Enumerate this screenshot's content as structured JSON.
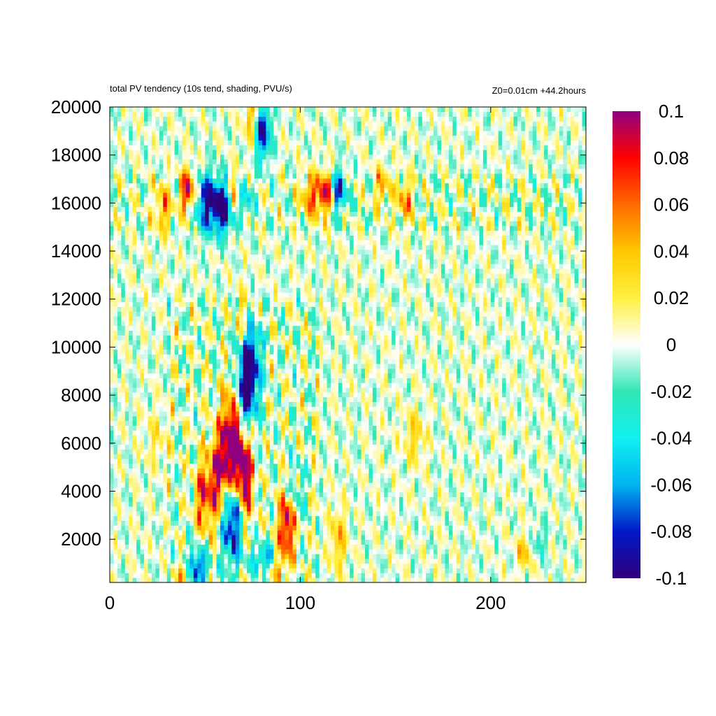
{
  "chart_data": {
    "type": "heatmap",
    "title": "total PV tendency (10s tend, shading, PVU/s)",
    "subtitle": "Z0=0.01cm   +44.2hours",
    "xlim": [
      0,
      250
    ],
    "ylim": [
      200,
      20000
    ],
    "x_ticks": [
      {
        "value": 0,
        "label": "0"
      },
      {
        "value": 100,
        "label": "100"
      },
      {
        "value": 200,
        "label": "200"
      }
    ],
    "y_ticks": [
      {
        "value": 2000,
        "label": "2000"
      },
      {
        "value": 4000,
        "label": "4000"
      },
      {
        "value": 6000,
        "label": "6000"
      },
      {
        "value": 8000,
        "label": "8000"
      },
      {
        "value": 10000,
        "label": "10000"
      },
      {
        "value": 12000,
        "label": "12000"
      },
      {
        "value": 14000,
        "label": "14000"
      },
      {
        "value": 16000,
        "label": "16000"
      },
      {
        "value": 18000,
        "label": "18000"
      },
      {
        "value": 20000,
        "label": "20000"
      }
    ],
    "colorbar": {
      "range": [
        -0.1,
        0.1
      ],
      "ticks": [
        {
          "value": 0.1,
          "label": "0.1"
        },
        {
          "value": 0.08,
          "label": "0.08"
        },
        {
          "value": 0.06,
          "label": "0.06"
        },
        {
          "value": 0.04,
          "label": "0.04"
        },
        {
          "value": 0.02,
          "label": "0.02"
        },
        {
          "value": 0,
          "label": "0"
        },
        {
          "value": -0.02,
          "label": "-0.02"
        },
        {
          "value": -0.04,
          "label": "-0.04"
        },
        {
          "value": -0.06,
          "label": "-0.06"
        },
        {
          "value": -0.08,
          "label": "-0.08"
        },
        {
          "value": -0.1,
          "label": "-0.1"
        }
      ],
      "colormap": [
        {
          "v": -0.1,
          "color": "#30007a"
        },
        {
          "v": -0.08,
          "color": "#0018c8"
        },
        {
          "v": -0.06,
          "color": "#00b4f0"
        },
        {
          "v": -0.04,
          "color": "#10f0f0"
        },
        {
          "v": -0.02,
          "color": "#30e6b4"
        },
        {
          "v": 0,
          "color": "#ffffff"
        },
        {
          "v": 0.02,
          "color": "#fff040"
        },
        {
          "v": 0.04,
          "color": "#ffc800"
        },
        {
          "v": 0.06,
          "color": "#ff6a00"
        },
        {
          "v": 0.08,
          "color": "#ff0000"
        },
        {
          "v": 0.1,
          "color": "#90007e"
        }
      ]
    },
    "features": [
      {
        "x": 80,
        "y": 19000,
        "sx": 3,
        "sy": 800,
        "amp": -0.1
      },
      {
        "x": 75,
        "y": 19500,
        "sx": 3,
        "sy": 800,
        "amp": 0.05
      },
      {
        "x": 41,
        "y": 16500,
        "sx": 3,
        "sy": 600,
        "amp": 0.09
      },
      {
        "x": 52,
        "y": 16000,
        "sx": 5,
        "sy": 800,
        "amp": -0.1
      },
      {
        "x": 60,
        "y": 15800,
        "sx": 3,
        "sy": 700,
        "amp": -0.1
      },
      {
        "x": 66,
        "y": 16400,
        "sx": 3,
        "sy": 600,
        "amp": 0.06
      },
      {
        "x": 70,
        "y": 16200,
        "sx": 3,
        "sy": 600,
        "amp": -0.06
      },
      {
        "x": 28,
        "y": 15800,
        "sx": 3,
        "sy": 700,
        "amp": 0.05
      },
      {
        "x": 105,
        "y": 16300,
        "sx": 3,
        "sy": 600,
        "amp": 0.06
      },
      {
        "x": 113,
        "y": 16400,
        "sx": 3,
        "sy": 600,
        "amp": 0.09
      },
      {
        "x": 120,
        "y": 16500,
        "sx": 3,
        "sy": 600,
        "amp": -0.08
      },
      {
        "x": 143,
        "y": 16700,
        "sx": 3,
        "sy": 600,
        "amp": 0.04
      },
      {
        "x": 155,
        "y": 16100,
        "sx": 3,
        "sy": 600,
        "amp": 0.05
      },
      {
        "x": 73,
        "y": 9200,
        "sx": 4,
        "sy": 1300,
        "amp": -0.12
      },
      {
        "x": 70,
        "y": 11000,
        "sx": 3,
        "sy": 1000,
        "amp": 0.04
      },
      {
        "x": 62,
        "y": 5500,
        "sx": 3,
        "sy": 1600,
        "amp": 0.11
      },
      {
        "x": 56,
        "y": 4500,
        "sx": 3,
        "sy": 1300,
        "amp": 0.08
      },
      {
        "x": 67,
        "y": 6000,
        "sx": 3,
        "sy": 1500,
        "amp": 0.09
      },
      {
        "x": 71,
        "y": 4500,
        "sx": 3,
        "sy": 1200,
        "amp": 0.1
      },
      {
        "x": 64,
        "y": 3000,
        "sx": 4,
        "sy": 1300,
        "amp": -0.12
      },
      {
        "x": 70,
        "y": 7500,
        "sx": 3,
        "sy": 1000,
        "amp": -0.06
      },
      {
        "x": 49,
        "y": 3800,
        "sx": 3,
        "sy": 1000,
        "amp": 0.07
      },
      {
        "x": 45,
        "y": 800,
        "sx": 4,
        "sy": 500,
        "amp": -0.1
      },
      {
        "x": 40,
        "y": 600,
        "sx": 3,
        "sy": 400,
        "amp": 0.07
      },
      {
        "x": 93,
        "y": 2600,
        "sx": 3,
        "sy": 900,
        "amp": 0.1
      },
      {
        "x": 82,
        "y": 1200,
        "sx": 5,
        "sy": 400,
        "amp": -0.07
      },
      {
        "x": 88,
        "y": 1000,
        "sx": 4,
        "sy": 500,
        "amp": 0.05
      },
      {
        "x": 120,
        "y": 2000,
        "sx": 3,
        "sy": 900,
        "amp": 0.04
      },
      {
        "x": 98,
        "y": 4000,
        "sx": 3,
        "sy": 900,
        "amp": -0.03
      },
      {
        "x": 160,
        "y": 6300,
        "sx": 4,
        "sy": 800,
        "amp": 0.03
      },
      {
        "x": 24,
        "y": 6200,
        "sx": 4,
        "sy": 800,
        "amp": 0.02
      },
      {
        "x": 218,
        "y": 1500,
        "sx": 3,
        "sy": 500,
        "amp": 0.04
      },
      {
        "x": 225,
        "y": 1900,
        "sx": 3,
        "sy": 500,
        "amp": -0.03
      }
    ]
  }
}
